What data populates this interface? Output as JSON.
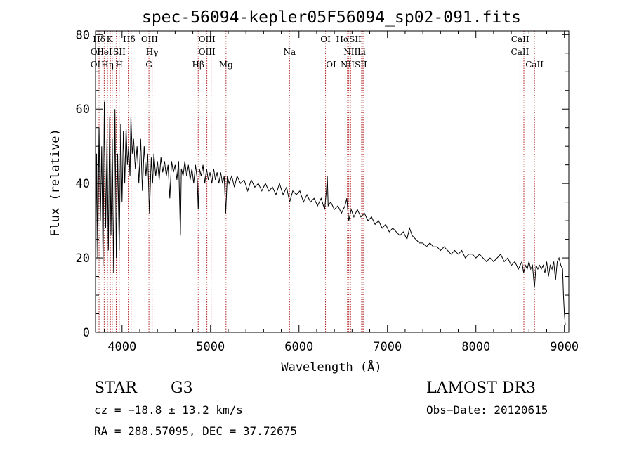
{
  "chart_data": {
    "type": "line",
    "title": "spec-56094-kepler05F56094_sp02-091.fits",
    "xlabel": "Wavelength (Å)",
    "ylabel": "Flux (relative)",
    "xlim": [
      3700,
      9050
    ],
    "ylim": [
      0,
      81
    ],
    "xticks": [
      4000,
      5000,
      6000,
      7000,
      8000,
      9000
    ],
    "yticks": [
      0,
      20,
      40,
      60,
      80
    ],
    "series": [
      {
        "name": "flux",
        "points": [
          [
            3700,
            2
          ],
          [
            3712,
            48
          ],
          [
            3725,
            20
          ],
          [
            3740,
            55
          ],
          [
            3755,
            30
          ],
          [
            3770,
            50
          ],
          [
            3785,
            18
          ],
          [
            3800,
            62
          ],
          [
            3815,
            28
          ],
          [
            3830,
            52
          ],
          [
            3845,
            22
          ],
          [
            3860,
            58
          ],
          [
            3875,
            26
          ],
          [
            3890,
            52
          ],
          [
            3905,
            16
          ],
          [
            3920,
            60
          ],
          [
            3935,
            20
          ],
          [
            3950,
            48
          ],
          [
            3968,
            22
          ],
          [
            3985,
            56
          ],
          [
            4000,
            35
          ],
          [
            4015,
            54
          ],
          [
            4030,
            40
          ],
          [
            4045,
            55
          ],
          [
            4060,
            45
          ],
          [
            4075,
            50
          ],
          [
            4090,
            42
          ],
          [
            4100,
            58
          ],
          [
            4115,
            48
          ],
          [
            4130,
            52
          ],
          [
            4150,
            44
          ],
          [
            4170,
            50
          ],
          [
            4190,
            40
          ],
          [
            4210,
            52
          ],
          [
            4230,
            38
          ],
          [
            4250,
            50
          ],
          [
            4270,
            42
          ],
          [
            4290,
            48
          ],
          [
            4310,
            32
          ],
          [
            4330,
            47
          ],
          [
            4345,
            40
          ],
          [
            4360,
            48
          ],
          [
            4380,
            42
          ],
          [
            4400,
            46
          ],
          [
            4420,
            41
          ],
          [
            4440,
            47
          ],
          [
            4460,
            43
          ],
          [
            4480,
            46
          ],
          [
            4500,
            42
          ],
          [
            4520,
            45
          ],
          [
            4540,
            36
          ],
          [
            4560,
            46
          ],
          [
            4580,
            43
          ],
          [
            4600,
            45
          ],
          [
            4620,
            41
          ],
          [
            4640,
            46
          ],
          [
            4660,
            26
          ],
          [
            4670,
            44
          ],
          [
            4690,
            42
          ],
          [
            4710,
            46
          ],
          [
            4730,
            42
          ],
          [
            4750,
            45
          ],
          [
            4770,
            41
          ],
          [
            4790,
            44
          ],
          [
            4810,
            40
          ],
          [
            4830,
            45
          ],
          [
            4850,
            41
          ],
          [
            4861,
            33
          ],
          [
            4875,
            44
          ],
          [
            4895,
            42
          ],
          [
            4915,
            45
          ],
          [
            4935,
            40
          ],
          [
            4955,
            44
          ],
          [
            4975,
            41
          ],
          [
            4995,
            43
          ],
          [
            5015,
            40
          ],
          [
            5035,
            44
          ],
          [
            5055,
            41
          ],
          [
            5075,
            43
          ],
          [
            5095,
            40
          ],
          [
            5115,
            43
          ],
          [
            5135,
            40
          ],
          [
            5155,
            42
          ],
          [
            5172,
            32
          ],
          [
            5190,
            42
          ],
          [
            5210,
            40
          ],
          [
            5240,
            42
          ],
          [
            5270,
            39
          ],
          [
            5300,
            42
          ],
          [
            5340,
            40
          ],
          [
            5380,
            41
          ],
          [
            5420,
            38
          ],
          [
            5460,
            41
          ],
          [
            5500,
            39
          ],
          [
            5540,
            40
          ],
          [
            5580,
            38
          ],
          [
            5620,
            40
          ],
          [
            5660,
            38
          ],
          [
            5700,
            39
          ],
          [
            5740,
            37
          ],
          [
            5780,
            40
          ],
          [
            5820,
            37
          ],
          [
            5860,
            39
          ],
          [
            5895,
            35
          ],
          [
            5930,
            38
          ],
          [
            5970,
            37
          ],
          [
            6010,
            38
          ],
          [
            6050,
            35
          ],
          [
            6090,
            37
          ],
          [
            6130,
            35
          ],
          [
            6170,
            36
          ],
          [
            6210,
            34
          ],
          [
            6250,
            36
          ],
          [
            6290,
            33
          ],
          [
            6310,
            38
          ],
          [
            6320,
            42
          ],
          [
            6330,
            34
          ],
          [
            6360,
            35
          ],
          [
            6400,
            33
          ],
          [
            6440,
            34
          ],
          [
            6480,
            32
          ],
          [
            6520,
            34
          ],
          [
            6540,
            36
          ],
          [
            6563,
            30
          ],
          [
            6590,
            33
          ],
          [
            6620,
            31
          ],
          [
            6660,
            33
          ],
          [
            6700,
            31
          ],
          [
            6740,
            32
          ],
          [
            6780,
            30
          ],
          [
            6820,
            31
          ],
          [
            6860,
            29
          ],
          [
            6900,
            30
          ],
          [
            6940,
            28
          ],
          [
            6980,
            29
          ],
          [
            7020,
            27
          ],
          [
            7060,
            28
          ],
          [
            7100,
            27
          ],
          [
            7140,
            26
          ],
          [
            7180,
            27
          ],
          [
            7220,
            25
          ],
          [
            7250,
            28
          ],
          [
            7280,
            26
          ],
          [
            7320,
            25
          ],
          [
            7360,
            24
          ],
          [
            7400,
            24
          ],
          [
            7440,
            23
          ],
          [
            7480,
            24
          ],
          [
            7520,
            23
          ],
          [
            7560,
            23
          ],
          [
            7600,
            22
          ],
          [
            7640,
            23
          ],
          [
            7680,
            22
          ],
          [
            7720,
            21
          ],
          [
            7760,
            22
          ],
          [
            7800,
            21
          ],
          [
            7840,
            22
          ],
          [
            7880,
            20
          ],
          [
            7920,
            21
          ],
          [
            7960,
            21
          ],
          [
            8000,
            20
          ],
          [
            8040,
            21
          ],
          [
            8080,
            20
          ],
          [
            8120,
            19
          ],
          [
            8160,
            20
          ],
          [
            8200,
            19
          ],
          [
            8240,
            20
          ],
          [
            8280,
            21
          ],
          [
            8320,
            19
          ],
          [
            8360,
            20
          ],
          [
            8400,
            18
          ],
          [
            8440,
            19
          ],
          [
            8480,
            17
          ],
          [
            8520,
            19
          ],
          [
            8540,
            16
          ],
          [
            8560,
            18
          ],
          [
            8580,
            17
          ],
          [
            8600,
            19
          ],
          [
            8620,
            17
          ],
          [
            8640,
            18
          ],
          [
            8662,
            12
          ],
          [
            8680,
            18
          ],
          [
            8700,
            17
          ],
          [
            8720,
            18
          ],
          [
            8740,
            17
          ],
          [
            8760,
            18
          ],
          [
            8780,
            16
          ],
          [
            8800,
            19
          ],
          [
            8820,
            15
          ],
          [
            8840,
            18
          ],
          [
            8860,
            17
          ],
          [
            8880,
            19
          ],
          [
            8900,
            14
          ],
          [
            8920,
            19
          ],
          [
            8940,
            20
          ],
          [
            8960,
            18
          ],
          [
            8980,
            17
          ],
          [
            8990,
            10
          ],
          [
            9000,
            5
          ],
          [
            9010,
            2
          ]
        ]
      }
    ],
    "line_markers": [
      {
        "label": "Hδ",
        "x": 3740,
        "row": 0
      },
      {
        "label": "K",
        "x": 3860,
        "row": 0
      },
      {
        "label": "Hδ",
        "x": 4080,
        "row": 0
      },
      {
        "label": "OIII",
        "x": 4310,
        "row": 0
      },
      {
        "label": "OIII",
        "x": 4960,
        "row": 0
      },
      {
        "label": "OI",
        "x": 6300,
        "row": 0
      },
      {
        "label": "HαSII",
        "x": 6563,
        "row": 0
      },
      {
        "label": "CaII",
        "x": 8500,
        "row": 0
      },
      {
        "label": "OI",
        "x": 3700,
        "row": 1
      },
      {
        "label": "HeI",
        "x": 3800,
        "row": 1
      },
      {
        "label": "SII",
        "x": 3970,
        "row": 1
      },
      {
        "label": "Hγ",
        "x": 4340,
        "row": 1
      },
      {
        "label": "OIII",
        "x": 4960,
        "row": 1
      },
      {
        "label": "Na",
        "x": 5893,
        "row": 1
      },
      {
        "label": "NII",
        "x": 6583,
        "row": 1
      },
      {
        "label": "Li",
        "x": 6708,
        "row": 1
      },
      {
        "label": "CaII",
        "x": 8498,
        "row": 1
      },
      {
        "label": "OI",
        "x": 3700,
        "row": 2
      },
      {
        "label": "Hη",
        "x": 3835,
        "row": 2
      },
      {
        "label": "H",
        "x": 3968,
        "row": 2
      },
      {
        "label": "G",
        "x": 4304,
        "row": 2
      },
      {
        "label": "Hβ",
        "x": 4861,
        "row": 2
      },
      {
        "label": "Mg",
        "x": 5175,
        "row": 2
      },
      {
        "label": "OI",
        "x": 6363,
        "row": 2
      },
      {
        "label": "NIISII",
        "x": 6620,
        "row": 2
      },
      {
        "label": "CaII",
        "x": 8662,
        "row": 2
      }
    ],
    "vlines": [
      3700,
      3740,
      3798,
      3835,
      3868,
      3889,
      3934,
      3968,
      4070,
      4102,
      4304,
      4340,
      4363,
      4861,
      4959,
      5007,
      5175,
      5893,
      6300,
      6363,
      6548,
      6563,
      6583,
      6708,
      6717,
      6731,
      8498,
      8542,
      8662
    ],
    "line_color": "#000000",
    "marker_color": "#b22222"
  },
  "info": {
    "object_class": "STAR",
    "subclass": "G3",
    "survey": "LAMOST DR3",
    "redshift": "cz = −18.8 ± 13.2 km/s",
    "obs_date": "Obs−Date: 20120615",
    "coords": "RA = 288.57095, DEC =  37.72675"
  }
}
